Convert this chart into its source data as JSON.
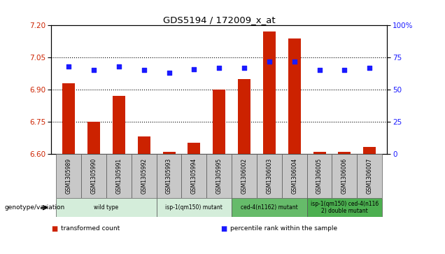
{
  "title": "GDS5194 / 172009_x_at",
  "samples": [
    "GSM1305989",
    "GSM1305990",
    "GSM1305991",
    "GSM1305992",
    "GSM1305993",
    "GSM1305994",
    "GSM1305995",
    "GSM1306002",
    "GSM1306003",
    "GSM1306004",
    "GSM1306005",
    "GSM1306006",
    "GSM1306007"
  ],
  "transformed_counts": [
    6.93,
    6.75,
    6.87,
    6.68,
    6.61,
    6.65,
    6.9,
    6.95,
    7.17,
    7.14,
    6.61,
    6.61,
    6.63
  ],
  "percentile_ranks": [
    68,
    65,
    68,
    65,
    63,
    66,
    67,
    67,
    72,
    72,
    65,
    65,
    67
  ],
  "ylim_left": [
    6.6,
    7.2
  ],
  "ylim_right": [
    0,
    100
  ],
  "yticks_left": [
    6.6,
    6.75,
    6.9,
    7.05,
    7.2
  ],
  "yticks_right": [
    0,
    25,
    50,
    75,
    100
  ],
  "hlines": [
    6.75,
    6.9,
    7.05
  ],
  "groups": [
    {
      "label": "wild type",
      "indices": [
        0,
        1,
        2,
        3
      ],
      "color": "#d4edda"
    },
    {
      "label": "isp-1(qm150) mutant",
      "indices": [
        4,
        5,
        6
      ],
      "color": "#d4edda"
    },
    {
      "label": "ced-4(n1162) mutant",
      "indices": [
        7,
        8,
        9
      ],
      "color": "#66bb6a"
    },
    {
      "label": "isp-1(qm150) ced-4(n116\n2) double mutant",
      "indices": [
        10,
        11,
        12
      ],
      "color": "#4caf50"
    }
  ],
  "bar_color": "#cc2200",
  "dot_color": "#1a1aff",
  "bar_width": 0.5,
  "left_label_color": "#cc2200",
  "right_label_color": "#1a1aff",
  "genotype_label": "genotype/variation",
  "legend_items": [
    {
      "label": "transformed count",
      "color": "#cc2200"
    },
    {
      "label": "percentile rank within the sample",
      "color": "#1a1aff"
    }
  ],
  "sample_box_color": "#c8c8c8",
  "fig_width": 6.36,
  "fig_height": 3.63,
  "dpi": 100
}
